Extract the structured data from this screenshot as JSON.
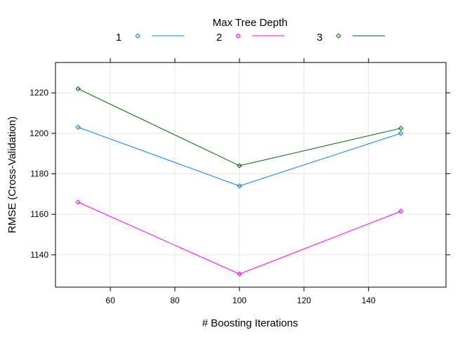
{
  "legend": {
    "title": "Max Tree Depth",
    "placement": "top"
  },
  "chart_data": {
    "type": "line",
    "title": "",
    "xlabel": "# Boosting Iterations",
    "ylabel": "RMSE (Cross-Validation)",
    "x": [
      50,
      100,
      150
    ],
    "xlim": [
      43,
      164
    ],
    "ylim": [
      1124,
      1235
    ],
    "xticks": [
      60,
      80,
      100,
      120,
      140
    ],
    "yticks": [
      1140,
      1160,
      1180,
      1200,
      1220
    ],
    "grid": true,
    "series": [
      {
        "name": "1",
        "color": "#0080ff",
        "values": [
          1203,
          1174,
          1200
        ]
      },
      {
        "name": "2",
        "color": "#ff00ff",
        "values": [
          1166,
          1130.5,
          1161.5
        ]
      },
      {
        "name": "3",
        "color": "#006400",
        "values": [
          1222,
          1184,
          1202.5
        ]
      }
    ]
  }
}
